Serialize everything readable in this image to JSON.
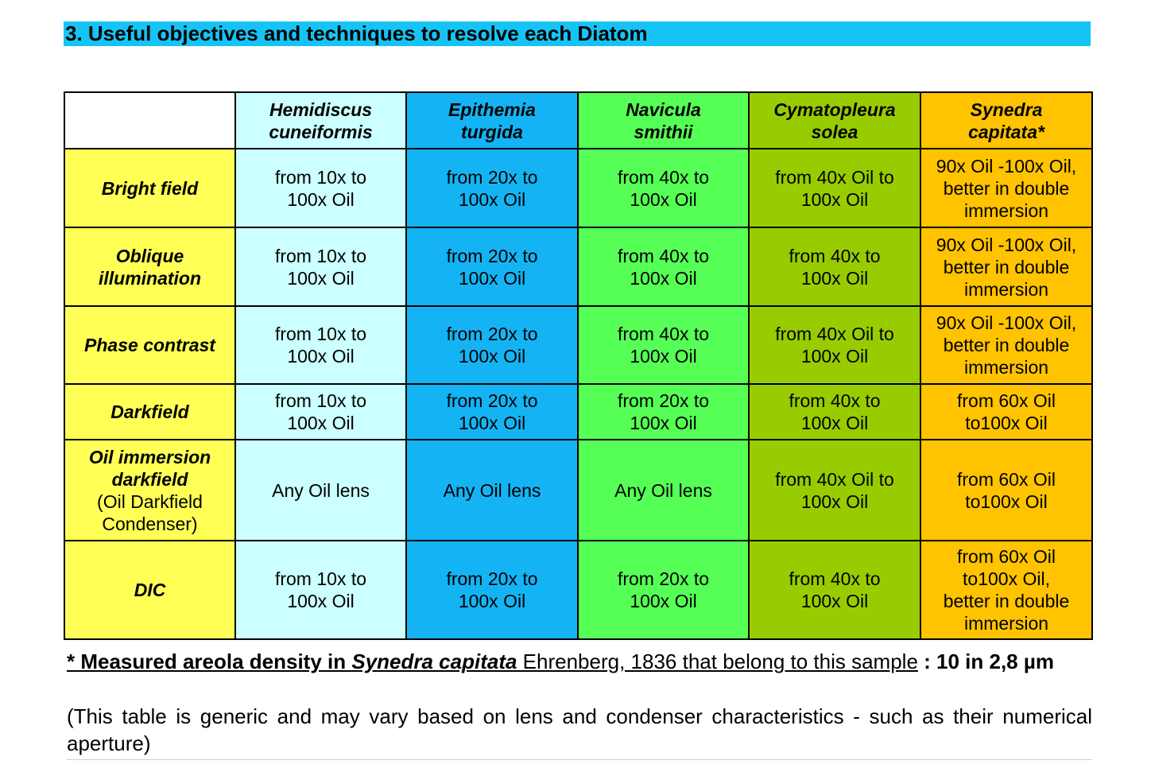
{
  "section": {
    "title": "3. Useful objectives and techniques to resolve each Diatom"
  },
  "table": {
    "columns": [
      {
        "line1": "Hemidiscus",
        "line2": "cuneiformis"
      },
      {
        "line1": "Epithemia",
        "line2": "turgida"
      },
      {
        "line1": "Navicula",
        "line2": "smithii"
      },
      {
        "line1": "Cymatopleura",
        "line2": "solea"
      },
      {
        "line1": "Synedra",
        "line2": "capitata*"
      }
    ],
    "colors": {
      "corner": "#ffffff",
      "row_header": "#ffff55",
      "columns": [
        "#ccffff",
        "#14b4f4",
        "#55ff55",
        "#99cc00",
        "#ffc300"
      ],
      "title_bar": "#15c4f4"
    },
    "rows": [
      {
        "header": "Bright field",
        "cells": [
          [
            "from 10x to",
            "100x Oil"
          ],
          [
            "from 20x to",
            "100x Oil"
          ],
          [
            "from 40x to",
            "100x Oil"
          ],
          [
            "from 40x Oil to",
            "100x Oil"
          ],
          [
            "90x Oil -100x Oil,",
            "better in double",
            "immersion"
          ]
        ]
      },
      {
        "header": [
          "Oblique",
          "illumination"
        ],
        "cells": [
          [
            "from 10x to",
            "100x Oil"
          ],
          [
            "from 20x to",
            "100x Oil"
          ],
          [
            "from 40x to",
            "100x Oil"
          ],
          [
            "from 40x to",
            "100x Oil"
          ],
          [
            "90x Oil -100x Oil,",
            "better in double",
            "immersion"
          ]
        ]
      },
      {
        "header": "Phase contrast",
        "cells": [
          [
            "from 10x to",
            "100x Oil"
          ],
          [
            "from 20x to",
            "100x Oil"
          ],
          [
            "from 40x to",
            "100x Oil"
          ],
          [
            "from 40x Oil to",
            "100x Oil"
          ],
          [
            "90x Oil -100x Oil,",
            "better in double",
            "immersion"
          ]
        ]
      },
      {
        "header": "Darkfield",
        "cells": [
          [
            "from 10x to",
            "100x Oil"
          ],
          [
            "from 20x to",
            "100x Oil"
          ],
          [
            "from 20x to",
            "100x Oil"
          ],
          [
            "from 40x to",
            "100x Oil"
          ],
          [
            "from 60x Oil",
            "to100x Oil"
          ]
        ]
      },
      {
        "header": [
          "Oil immersion",
          "darkfield"
        ],
        "header_sub": [
          "(Oil Darkfield",
          "Condenser)"
        ],
        "cells": [
          [
            "Any Oil lens"
          ],
          [
            "Any Oil lens"
          ],
          [
            "Any Oil lens"
          ],
          [
            "from 40x Oil to",
            "100x Oil"
          ],
          [
            "from 60x Oil",
            "to100x Oil"
          ]
        ]
      },
      {
        "header": "DIC",
        "cells": [
          [
            "from 10x to",
            "100x Oil"
          ],
          [
            "from 20x to",
            "100x Oil"
          ],
          [
            "from 20x to",
            "100x Oil"
          ],
          [
            "from 40x to",
            "100x Oil"
          ],
          [
            "from 60x Oil",
            "to100x Oil,",
            "better in double",
            "immersion"
          ]
        ]
      }
    ]
  },
  "footnote": {
    "prefix": "* Measured areola density in ",
    "species": "Synedra capitata",
    "authority": " Ehrenberg, 1836 that belong to this sample",
    "suffix": " : 10 in 2,8 µm"
  },
  "disclaimer": "(This table is generic and may vary based on lens and condenser characteristics - such as their numerical aperture)"
}
